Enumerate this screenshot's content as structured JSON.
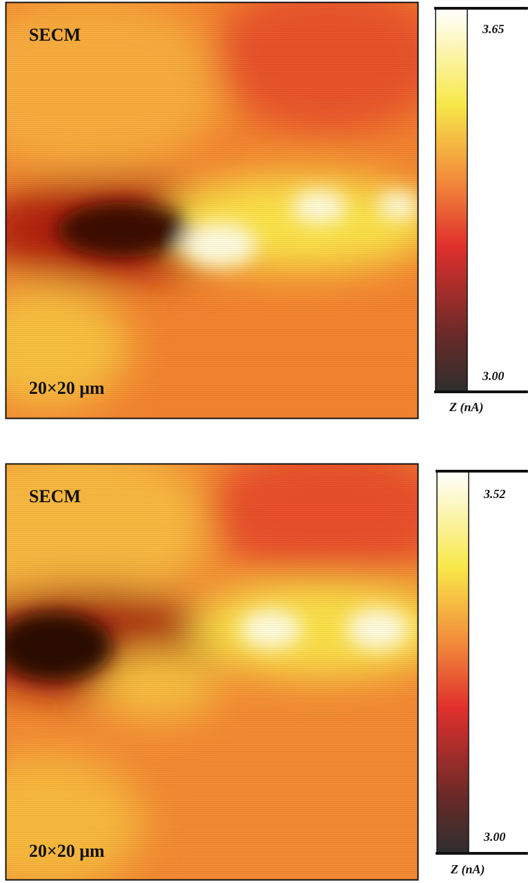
{
  "panels": [
    {
      "label": "SECM",
      "scale": "20×20 μm",
      "colorbar": {
        "max": "3.65",
        "min": "3.00",
        "axis_label": "Z (nA)"
      }
    },
    {
      "label": "SECM",
      "scale": "20×20 μm",
      "colorbar": {
        "max": "3.52",
        "min": "3.00",
        "axis_label": "Z (nA)"
      }
    }
  ]
}
